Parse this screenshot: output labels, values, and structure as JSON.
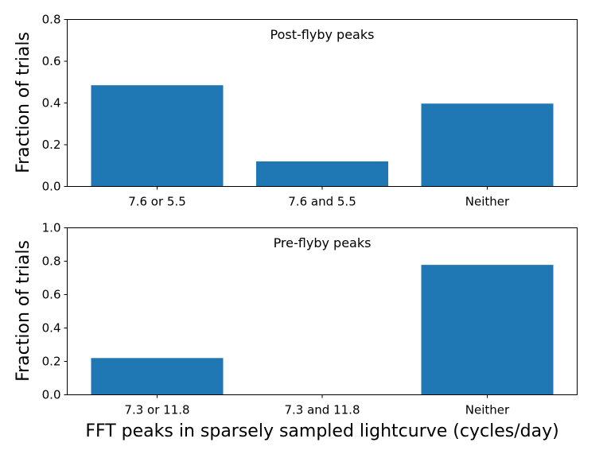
{
  "chart_data": [
    {
      "type": "bar",
      "title": "Post-flyby peaks",
      "categories": [
        "7.6 or 5.5",
        "7.6 and 5.5",
        "Neither"
      ],
      "values": [
        0.485,
        0.12,
        0.397
      ],
      "ylabel": "Fraction of trials",
      "xlabel": "",
      "ylim": [
        0,
        0.8
      ],
      "yticks": [
        0.0,
        0.2,
        0.4,
        0.6,
        0.8
      ],
      "ytick_labels": [
        "0.0",
        "0.2",
        "0.4",
        "0.6",
        "0.8"
      ],
      "color": "#1f77b4"
    },
    {
      "type": "bar",
      "title": "Pre-flyby peaks",
      "categories": [
        "7.3 or 11.8",
        "7.3 and 11.8",
        "Neither"
      ],
      "values": [
        0.22,
        0.0,
        0.778
      ],
      "ylabel": "Fraction of trials",
      "xlabel": "FFT peaks in sparsely sampled lightcurve (cycles/day)",
      "ylim": [
        0,
        1.0
      ],
      "yticks": [
        0.0,
        0.2,
        0.4,
        0.6,
        0.8,
        1.0
      ],
      "ytick_labels": [
        "0.0",
        "0.2",
        "0.4",
        "0.6",
        "0.8",
        "1.0"
      ],
      "color": "#1f77b4"
    }
  ]
}
